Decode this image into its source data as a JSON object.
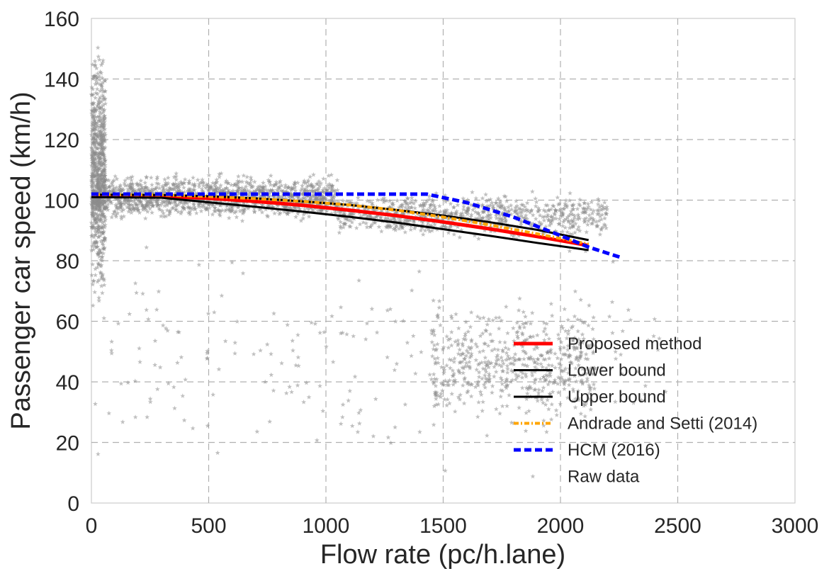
{
  "chart_data": {
    "type": "scatter",
    "title": "",
    "xlabel": "Flow rate (pc/h.lane)",
    "ylabel": "Passenger car speed (km/h)",
    "xlim": [
      0,
      3000
    ],
    "ylim": [
      0,
      160
    ],
    "xticks": [
      0,
      500,
      1000,
      1500,
      2000,
      2500,
      3000
    ],
    "yticks": [
      0,
      20,
      40,
      60,
      80,
      100,
      120,
      140,
      160
    ],
    "grid": true,
    "legend_position": "lower-right",
    "series": [
      {
        "name": "Proposed method",
        "kind": "line",
        "color": "#ff0000",
        "style": "solid",
        "width": 5,
        "x": [
          0,
          300,
          500,
          700,
          900,
          1100,
          1300,
          1500,
          1700,
          1900,
          2120
        ],
        "y": [
          101.5,
          101.3,
          100.6,
          99.6,
          98.3,
          96.7,
          94.9,
          92.8,
          90.5,
          88.0,
          85.0
        ]
      },
      {
        "name": "Lower bound",
        "kind": "line",
        "color": "#000000",
        "style": "solid",
        "width": 3,
        "x": [
          0,
          300,
          500,
          700,
          900,
          1100,
          1300,
          1500,
          1700,
          1900,
          2120
        ],
        "y": [
          101.0,
          100.8,
          99.3,
          97.8,
          96.2,
          94.5,
          92.6,
          90.4,
          88.2,
          85.9,
          83.5
        ]
      },
      {
        "name": "Upper bound",
        "kind": "line",
        "color": "#000000",
        "style": "solid",
        "width": 3,
        "x": [
          0,
          300,
          500,
          700,
          900,
          1100,
          1300,
          1500,
          1700,
          1900,
          2120
        ],
        "y": [
          101.8,
          101.7,
          101.3,
          100.6,
          99.6,
          98.4,
          96.8,
          94.9,
          92.7,
          90.2,
          86.8
        ]
      },
      {
        "name": "Andrade and Setti (2014)",
        "kind": "line",
        "color": "#ffa500",
        "style": "dashdot",
        "width": 4,
        "x": [
          0,
          300,
          500,
          700,
          900,
          1100,
          1300,
          1500,
          1700,
          1900,
          2120
        ],
        "y": [
          101.8,
          101.7,
          101.2,
          100.5,
          99.6,
          98.4,
          96.7,
          94.4,
          91.8,
          88.9,
          85.5
        ]
      },
      {
        "name": "HCM (2016)",
        "kind": "line",
        "color": "#0000ff",
        "style": "dashed",
        "width": 5,
        "x": [
          0,
          1430,
          1600,
          1800,
          2000,
          2120,
          2260
        ],
        "y": [
          102,
          102,
          99.2,
          94.4,
          88.3,
          84.5,
          81.0
        ]
      },
      {
        "name": "Raw data",
        "kind": "scatter",
        "color": "#8c8c8c",
        "marker": "star",
        "clusters": [
          {
            "x_range": [
              0,
              60
            ],
            "y_range": [
              60,
              157
            ],
            "count": 700
          },
          {
            "x_range": [
              0,
              1050
            ],
            "y_range": [
              92,
              110
            ],
            "count": 1400
          },
          {
            "x_range": [
              1050,
              2200
            ],
            "y_range": [
              86,
              104
            ],
            "count": 800
          },
          {
            "x_range": [
              1450,
              2150
            ],
            "y_range": [
              22,
              70
            ],
            "count": 550
          },
          {
            "x_range": [
              0,
              2450
            ],
            "y_range": [
              3,
              92
            ],
            "count": 220
          }
        ]
      }
    ]
  }
}
